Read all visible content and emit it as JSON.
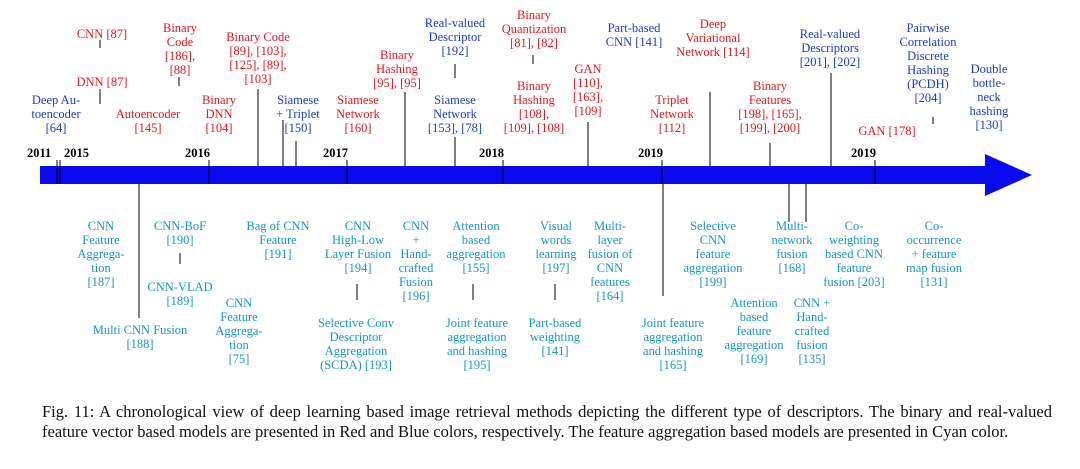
{
  "caption": "Fig. 11: A chronological view of deep learning based image retrieval methods depicting the different type of descriptors. The binary and real-valued feature vector based models are presented in Red and Blue colors, respectively. The feature aggregation based models are presented in Cyan color.",
  "colors": {
    "binary": "#e8141c",
    "real_valued": "#1a3cc8",
    "aggregation": "#1596c8",
    "arrow": "#0a0af0"
  },
  "years": [
    "2011",
    "2015",
    "2016",
    "2017",
    "2018",
    "2019",
    "2019"
  ],
  "above": [
    {
      "id": "a1",
      "text": "Deep Au-\ntoencoder\n[64]",
      "color": "blue"
    },
    {
      "id": "a2",
      "text": "DNN [87]",
      "color": "red"
    },
    {
      "id": "a3",
      "text": "CNN [87]",
      "color": "red"
    },
    {
      "id": "a4",
      "text": "Autoencoder\n[145]",
      "color": "red"
    },
    {
      "id": "a5",
      "text": "Binary\nCode\n[186],\n[88]",
      "color": "red"
    },
    {
      "id": "a6",
      "text": "Binary\nDNN\n[104]",
      "color": "red"
    },
    {
      "id": "a7",
      "text": "Binary Code\n[89], [103],\n[125], [89],\n[103]",
      "color": "red"
    },
    {
      "id": "a8",
      "text": "Siamese\n+ Triplet\n[150]",
      "color": "blue"
    },
    {
      "id": "a9",
      "text": "Siamese\nNetwork\n[160]",
      "color": "red"
    },
    {
      "id": "a10",
      "text": "Binary\nHashing\n[95], [95]",
      "color": "red"
    },
    {
      "id": "a11",
      "text": "Real-valued\nDescriptor\n[192]",
      "color": "blue"
    },
    {
      "id": "a12",
      "text": "Siamese\nNetwork\n[153], [78]",
      "color": "blue"
    },
    {
      "id": "a13",
      "text": "Binary\nQuantization\n[81], [82]",
      "color": "red"
    },
    {
      "id": "a14",
      "text": "Binary\nHashing\n[108],\n[109], [108]",
      "color": "red"
    },
    {
      "id": "a15",
      "text": "GAN\n[110],\n[163],\n[109]",
      "color": "red"
    },
    {
      "id": "a16",
      "text": "Part-based\nCNN [141]",
      "color": "blue"
    },
    {
      "id": "a17",
      "text": "Triplet\nNetwork\n[112]",
      "color": "red"
    },
    {
      "id": "a18",
      "text": "Deep\nVariational\nNetwork [114]",
      "color": "red"
    },
    {
      "id": "a19",
      "text": "Binary\nFeatures\n[198], [165],\n[199], [200]",
      "color": "red"
    },
    {
      "id": "a20",
      "text": "Real-valued\nDescriptors\n[201], [202]",
      "color": "blue"
    },
    {
      "id": "a21",
      "text": "GAN [178]",
      "color": "red"
    },
    {
      "id": "a22",
      "text": "Pairwise\nCorrelation\nDiscrete\nHashing\n(PCDH)\n[204]",
      "color": "blue"
    },
    {
      "id": "a23",
      "text": "Double\nbottle-\nneck\nhashing\n[130]",
      "color": "blue"
    }
  ],
  "below": [
    {
      "id": "b1",
      "text": "CNN\nFeature\nAggrega-\ntion\n[187]",
      "color": "cyan"
    },
    {
      "id": "b2",
      "text": "Multi CNN Fusion\n[188]",
      "color": "cyan"
    },
    {
      "id": "b3",
      "text": "CNN-BoF\n[190]",
      "color": "cyan"
    },
    {
      "id": "b4",
      "text": "CNN-VLAD\n[189]",
      "color": "cyan"
    },
    {
      "id": "b5",
      "text": "CNN\nFeature\nAggrega-\ntion\n[75]",
      "color": "cyan"
    },
    {
      "id": "b6",
      "text": "Bag of CNN\nFeature\n[191]",
      "color": "cyan"
    },
    {
      "id": "b7",
      "text": "CNN\nHigh-Low\nLayer Fusion\n[194]",
      "color": "cyan"
    },
    {
      "id": "b8",
      "text": "Selective Conv\nDescriptor\nAggregation\n(SCDA) [193]",
      "color": "cyan"
    },
    {
      "id": "b9",
      "text": "CNN\n+\nHand-\ncrafted\nFusion\n[196]",
      "color": "cyan"
    },
    {
      "id": "b10",
      "text": "Attention\nbased\naggregation\n[155]",
      "color": "cyan"
    },
    {
      "id": "b11",
      "text": "Joint feature\naggregation\nand hashing\n[195]",
      "color": "cyan"
    },
    {
      "id": "b12",
      "text": "Visual\nwords\nlearning\n[197]",
      "color": "cyan"
    },
    {
      "id": "b13",
      "text": "Part-based\nweighting\n[141]",
      "color": "cyan"
    },
    {
      "id": "b14",
      "text": "Multi-\nlayer\nfusion of\nCNN\nfeatures\n[164]",
      "color": "cyan"
    },
    {
      "id": "b15",
      "text": "Joint feature\naggregation\nand hashing\n[165]",
      "color": "cyan"
    },
    {
      "id": "b16",
      "text": "Selective\nCNN\nfeature\naggregation\n[199]",
      "color": "cyan"
    },
    {
      "id": "b17",
      "text": "Attention\nbased\nfeature\naggregation\n[169]",
      "color": "cyan"
    },
    {
      "id": "b18",
      "text": "Multi-\nnetwork\nfusion\n[168]",
      "color": "cyan"
    },
    {
      "id": "b19",
      "text": "CNN +\nHand-\ncrafted\nfusion\n[135]",
      "color": "cyan"
    },
    {
      "id": "b20",
      "text": "Co-\nweighting\nbased CNN\nfeature\nfusion [203]",
      "color": "cyan"
    },
    {
      "id": "b21",
      "text": "Co-\noccurrence\n+ feature\nmap fusion\n[131]",
      "color": "cyan"
    }
  ]
}
